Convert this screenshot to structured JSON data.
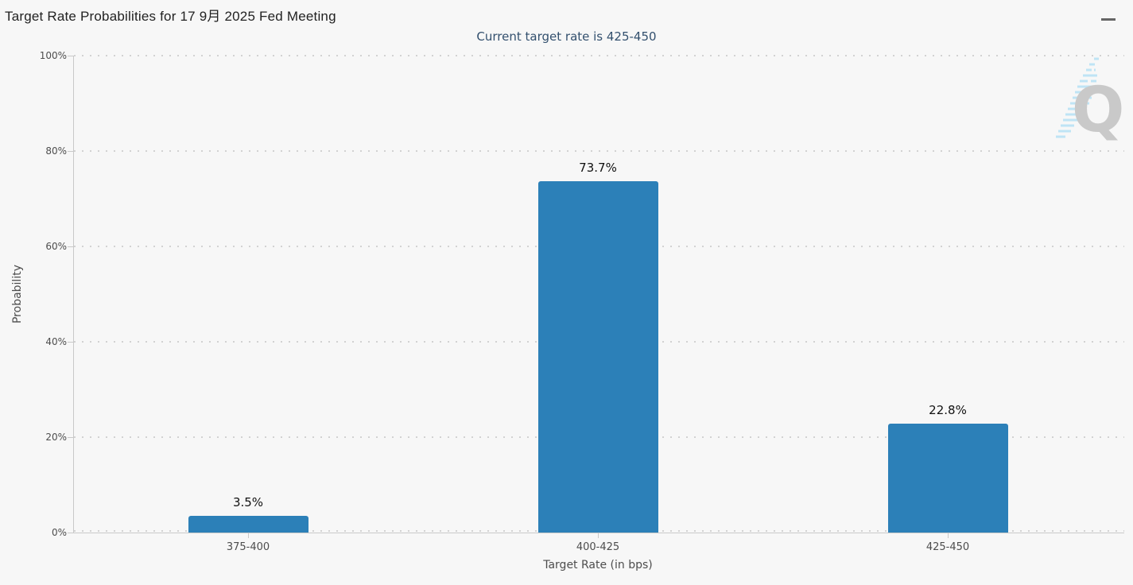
{
  "page": {
    "background": "#f7f7f7"
  },
  "header": {
    "title": "Target Rate Probabilities for 17 9月 2025 Fed Meeting",
    "subtitle": "Current target rate is 425-450"
  },
  "toolbar": {
    "menu_icon": "hamburger-menu-icon"
  },
  "watermark": {
    "icon": "quikstrike-q-watermark",
    "letter": "Q"
  },
  "chart_data": {
    "type": "bar",
    "title": "Target Rate Probabilities for 17 9月 2025 Fed Meeting",
    "subtitle": "Current target rate is 425-450",
    "categories": [
      "375-400",
      "400-425",
      "425-450"
    ],
    "values": [
      3.5,
      73.7,
      22.8
    ],
    "data_labels": [
      "3.5%",
      "73.7%",
      "22.8%"
    ],
    "xlabel": "Target Rate (in bps)",
    "ylabel": "Probability",
    "ylim": [
      0,
      100
    ],
    "ytick_labels": [
      "0%",
      "20%",
      "40%",
      "60%",
      "80%",
      "100%"
    ],
    "ytick_values": [
      0,
      20,
      40,
      60,
      80,
      100
    ],
    "legend": "none",
    "grid": "horizontal-dotted",
    "bar_color": "#2c80b8"
  }
}
